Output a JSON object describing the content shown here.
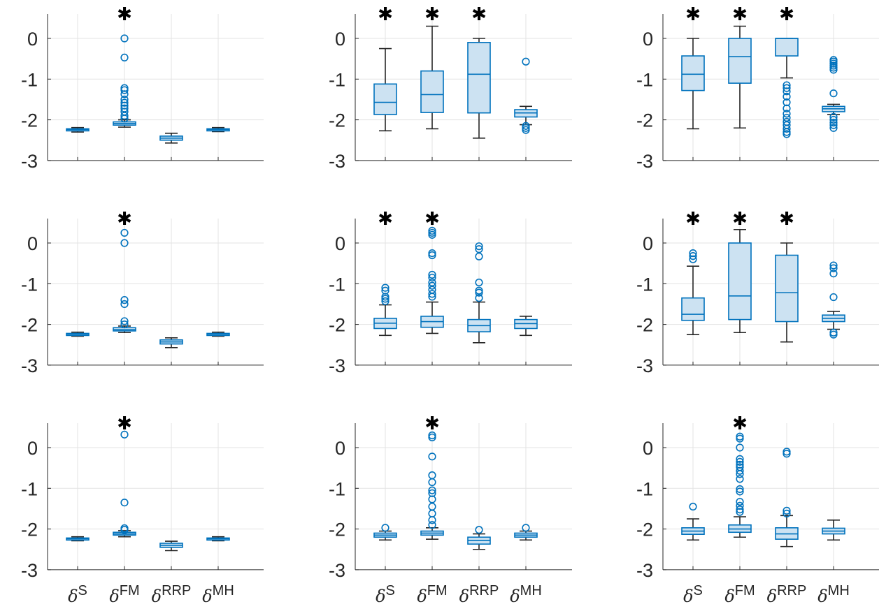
{
  "chart_data": {
    "type": "boxplot",
    "layout": "3x3 grid",
    "categories": [
      "S",
      "FM",
      "RRP",
      "MH"
    ],
    "category_symbol": "δ",
    "y_ticks": [
      "0",
      "-1",
      "-2",
      "-3"
    ],
    "ylim": [
      -3,
      0.6
    ],
    "grid": true,
    "significance_marker": "✱",
    "colors": {
      "box_stroke": "#0072BD",
      "box_fill": "#CCE2F2",
      "whisker": "#262626",
      "axis": "#262626",
      "grid": "#E3E3E3",
      "marker": "#000000"
    },
    "panels": [
      {
        "row": 1,
        "col": 1,
        "boxes": [
          {
            "category": "S",
            "q1": -2.27,
            "median": -2.24,
            "q3": -2.22,
            "whisker_low": -2.3,
            "whisker_high": -2.19,
            "outliers": []
          },
          {
            "category": "FM",
            "q1": -2.13,
            "median": -2.09,
            "q3": -2.05,
            "whisker_low": -2.18,
            "whisker_high": -2.0,
            "outliers": [
              0.0,
              -0.47,
              -1.22,
              -1.27,
              -1.37,
              -1.5,
              -1.58,
              -1.65,
              -1.72,
              -1.8,
              -1.9,
              -1.97
            ]
          },
          {
            "category": "RRP",
            "q1": -2.5,
            "median": -2.45,
            "q3": -2.4,
            "whisker_low": -2.57,
            "whisker_high": -2.33,
            "outliers": []
          },
          {
            "category": "MH",
            "q1": -2.26,
            "median": -2.24,
            "q3": -2.22,
            "whisker_low": -2.29,
            "whisker_high": -2.19,
            "outliers": []
          }
        ],
        "significant": [
          "FM"
        ]
      },
      {
        "row": 1,
        "col": 2,
        "boxes": [
          {
            "category": "S",
            "q1": -1.87,
            "median": -1.57,
            "q3": -1.12,
            "whisker_low": -2.27,
            "whisker_high": -0.25,
            "outliers": []
          },
          {
            "category": "FM",
            "q1": -1.82,
            "median": -1.38,
            "q3": -0.8,
            "whisker_low": -2.22,
            "whisker_high": 0.3,
            "outliers": []
          },
          {
            "category": "RRP",
            "q1": -1.83,
            "median": -0.88,
            "q3": -0.1,
            "whisker_low": -2.45,
            "whisker_high": 0.0,
            "outliers": []
          },
          {
            "category": "MH",
            "q1": -1.93,
            "median": -1.83,
            "q3": -1.75,
            "whisker_low": -2.12,
            "whisker_high": -1.67,
            "outliers": [
              -0.57,
              -2.15,
              -2.2,
              -2.25
            ]
          }
        ],
        "significant": [
          "S",
          "FM",
          "RRP"
        ]
      },
      {
        "row": 1,
        "col": 3,
        "boxes": [
          {
            "category": "S",
            "q1": -1.28,
            "median": -0.88,
            "q3": -0.43,
            "whisker_low": -2.22,
            "whisker_high": 0.0,
            "outliers": []
          },
          {
            "category": "FM",
            "q1": -1.1,
            "median": -0.45,
            "q3": 0.0,
            "whisker_low": -2.2,
            "whisker_high": 0.3,
            "outliers": []
          },
          {
            "category": "RRP",
            "q1": -0.43,
            "median": 0.0,
            "q3": 0.0,
            "whisker_low": -0.97,
            "whisker_high": 0.0,
            "outliers": [
              -1.15,
              -1.22,
              -1.3,
              -1.43,
              -1.57,
              -1.72,
              -1.85,
              -1.95,
              -2.05,
              -2.13,
              -2.22,
              -2.3,
              -2.35
            ]
          },
          {
            "category": "MH",
            "q1": -1.8,
            "median": -1.73,
            "q3": -1.67,
            "whisker_low": -1.87,
            "whisker_high": -1.62,
            "outliers": [
              -0.53,
              -0.57,
              -0.62,
              -0.67,
              -0.72,
              -0.77,
              -1.35,
              -1.93,
              -2.0,
              -2.07,
              -2.13,
              -2.2
            ]
          }
        ],
        "significant": [
          "S",
          "FM",
          "RRP"
        ]
      },
      {
        "row": 2,
        "col": 1,
        "boxes": [
          {
            "category": "S",
            "q1": -2.27,
            "median": -2.24,
            "q3": -2.22,
            "whisker_low": -2.29,
            "whisker_high": -2.19,
            "outliers": []
          },
          {
            "category": "FM",
            "q1": -2.16,
            "median": -2.13,
            "q3": -2.08,
            "whisker_low": -2.2,
            "whisker_high": -2.04,
            "outliers": [
              0.25,
              0.0,
              -1.4,
              -1.5,
              -1.92,
              -2.0
            ]
          },
          {
            "category": "RRP",
            "q1": -2.48,
            "median": -2.43,
            "q3": -2.38,
            "whisker_low": -2.57,
            "whisker_high": -2.33,
            "outliers": []
          },
          {
            "category": "MH",
            "q1": -2.26,
            "median": -2.24,
            "q3": -2.22,
            "whisker_low": -2.29,
            "whisker_high": -2.19,
            "outliers": []
          }
        ],
        "significant": [
          "FM"
        ]
      },
      {
        "row": 2,
        "col": 2,
        "boxes": [
          {
            "category": "S",
            "q1": -2.1,
            "median": -1.97,
            "q3": -1.85,
            "whisker_low": -2.27,
            "whisker_high": -1.52,
            "outliers": [
              -1.1,
              -1.17,
              -1.32,
              -1.37,
              -1.43
            ]
          },
          {
            "category": "FM",
            "q1": -2.07,
            "median": -1.93,
            "q3": -1.8,
            "whisker_low": -2.22,
            "whisker_high": -1.45,
            "outliers": [
              0.3,
              0.25,
              0.2,
              -0.25,
              -0.3,
              -0.78,
              -0.85,
              -0.97,
              -1.05,
              -1.15,
              -1.25,
              -1.32
            ]
          },
          {
            "category": "RRP",
            "q1": -2.18,
            "median": -2.03,
            "q3": -1.88,
            "whisker_low": -2.45,
            "whisker_high": -1.45,
            "outliers": [
              -0.08,
              -0.15,
              -0.33,
              -0.97,
              -1.17,
              -1.22,
              -1.35
            ]
          },
          {
            "category": "MH",
            "q1": -2.1,
            "median": -1.98,
            "q3": -1.88,
            "whisker_low": -2.27,
            "whisker_high": -1.8,
            "outliers": []
          }
        ],
        "significant": [
          "S",
          "FM"
        ]
      },
      {
        "row": 2,
        "col": 3,
        "boxes": [
          {
            "category": "S",
            "q1": -1.9,
            "median": -1.75,
            "q3": -1.35,
            "whisker_low": -2.25,
            "whisker_high": -0.57,
            "outliers": [
              -0.25,
              -0.32,
              -0.4
            ]
          },
          {
            "category": "FM",
            "q1": -1.88,
            "median": -1.3,
            "q3": 0.0,
            "whisker_low": -2.2,
            "whisker_high": 0.33,
            "outliers": []
          },
          {
            "category": "RRP",
            "q1": -1.93,
            "median": -1.22,
            "q3": -0.3,
            "whisker_low": -2.43,
            "whisker_high": 0.0,
            "outliers": []
          },
          {
            "category": "MH",
            "q1": -1.93,
            "median": -1.85,
            "q3": -1.77,
            "whisker_low": -2.12,
            "whisker_high": -1.68,
            "outliers": [
              -0.55,
              -0.62,
              -0.75,
              -1.33,
              -2.2,
              -2.25
            ]
          }
        ],
        "significant": [
          "S",
          "FM",
          "RRP"
        ]
      },
      {
        "row": 3,
        "col": 1,
        "boxes": [
          {
            "category": "S",
            "q1": -2.27,
            "median": -2.24,
            "q3": -2.22,
            "whisker_low": -2.29,
            "whisker_high": -2.19,
            "outliers": []
          },
          {
            "category": "FM",
            "q1": -2.15,
            "median": -2.12,
            "q3": -2.08,
            "whisker_low": -2.19,
            "whisker_high": -2.04,
            "outliers": [
              0.32,
              -1.35,
              -1.98,
              -2.02
            ]
          },
          {
            "category": "RRP",
            "q1": -2.45,
            "median": -2.4,
            "q3": -2.35,
            "whisker_low": -2.53,
            "whisker_high": -2.3,
            "outliers": []
          },
          {
            "category": "MH",
            "q1": -2.26,
            "median": -2.24,
            "q3": -2.22,
            "whisker_low": -2.29,
            "whisker_high": -2.19,
            "outliers": []
          }
        ],
        "significant": [
          "FM"
        ]
      },
      {
        "row": 3,
        "col": 2,
        "boxes": [
          {
            "category": "S",
            "q1": -2.2,
            "median": -2.15,
            "q3": -2.1,
            "whisker_low": -2.27,
            "whisker_high": -2.05,
            "outliers": [
              -1.97
            ]
          },
          {
            "category": "FM",
            "q1": -2.15,
            "median": -2.1,
            "q3": -2.05,
            "whisker_low": -2.25,
            "whisker_high": -1.97,
            "outliers": [
              0.3,
              0.25,
              -0.22,
              -0.68,
              -0.85,
              -1.05,
              -1.12,
              -1.27,
              -1.45,
              -1.62,
              -1.78,
              -1.9
            ]
          },
          {
            "category": "RRP",
            "q1": -2.37,
            "median": -2.28,
            "q3": -2.2,
            "whisker_low": -2.5,
            "whisker_high": -2.12,
            "outliers": [
              -2.02
            ]
          },
          {
            "category": "MH",
            "q1": -2.2,
            "median": -2.15,
            "q3": -2.1,
            "whisker_low": -2.27,
            "whisker_high": -2.05,
            "outliers": [
              -1.97
            ]
          }
        ],
        "significant": [
          "FM"
        ]
      },
      {
        "row": 3,
        "col": 3,
        "boxes": [
          {
            "category": "S",
            "q1": -2.13,
            "median": -2.05,
            "q3": -1.97,
            "whisker_low": -2.27,
            "whisker_high": -1.75,
            "outliers": [
              -1.45
            ]
          },
          {
            "category": "FM",
            "q1": -2.08,
            "median": -2.0,
            "q3": -1.9,
            "whisker_low": -2.2,
            "whisker_high": -1.7,
            "outliers": [
              0.27,
              0.22,
              0.0,
              -0.28,
              -0.35,
              -0.42,
              -0.48,
              -0.57,
              -0.65,
              -0.77,
              -1.02,
              -1.08,
              -1.33,
              -1.43,
              -1.52,
              -1.58
            ]
          },
          {
            "category": "RRP",
            "q1": -2.25,
            "median": -2.12,
            "q3": -1.97,
            "whisker_low": -2.43,
            "whisker_high": -1.67,
            "outliers": [
              -0.1,
              -0.15,
              -1.55,
              -1.62
            ]
          },
          {
            "category": "MH",
            "q1": -2.12,
            "median": -2.05,
            "q3": -1.98,
            "whisker_low": -2.27,
            "whisker_high": -1.78,
            "outliers": []
          }
        ],
        "significant": [
          "FM"
        ]
      }
    ]
  }
}
